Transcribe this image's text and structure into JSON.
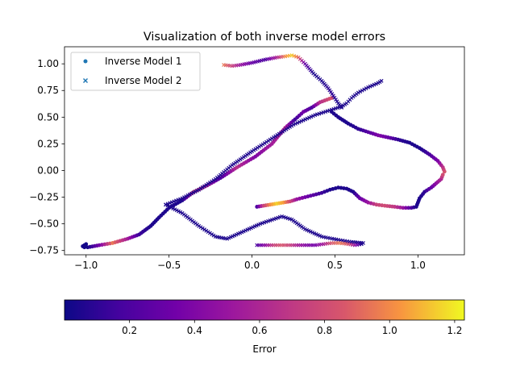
{
  "chart_data": {
    "type": "scatter",
    "title": "Visualization of both inverse model errors",
    "xlabel": "",
    "ylabel": "",
    "xlim": [
      -1.13,
      1.28
    ],
    "ylim": [
      -0.79,
      1.16
    ],
    "xticks": [
      -1.0,
      -0.5,
      0.0,
      0.5,
      1.0
    ],
    "yticks": [
      -0.75,
      -0.5,
      -0.25,
      0.0,
      0.25,
      0.5,
      0.75,
      1.0
    ],
    "xtick_labels": [
      "−1.0",
      "−0.5",
      "0.0",
      "0.5",
      "1.0"
    ],
    "ytick_labels": [
      "−0.75",
      "−0.50",
      "−0.25",
      "0.00",
      "0.25",
      "0.50",
      "0.75",
      "1.00"
    ],
    "grid": false,
    "legend": {
      "position": "top-left",
      "entries": [
        "Inverse Model 1",
        "Inverse Model 2"
      ]
    },
    "colorbar": {
      "label": "Error",
      "colormap": "plasma",
      "range": [
        0.0,
        1.23
      ],
      "ticks": [
        0.2,
        0.4,
        0.6,
        0.8,
        1.0,
        1.2
      ],
      "tick_labels": [
        "0.2",
        "0.4",
        "0.6",
        "0.8",
        "1.0",
        "1.2"
      ]
    },
    "series": [
      {
        "name": "Inverse Model 1",
        "marker": "circle",
        "paths": [
          {
            "points": [
              [
                -1.01,
                -0.72,
                0.02
              ],
              [
                -1.0,
                -0.69,
                0.02
              ],
              [
                -1.02,
                -0.71,
                0.02
              ],
              [
                -0.99,
                -0.72,
                0.02
              ],
              [
                -0.92,
                -0.7,
                0.35
              ],
              [
                -0.84,
                -0.68,
                0.95
              ],
              [
                -0.75,
                -0.64,
                0.55
              ],
              [
                -0.68,
                -0.6,
                0.15
              ],
              [
                -0.61,
                -0.52,
                0.05
              ],
              [
                -0.56,
                -0.44,
                0.05
              ],
              [
                -0.5,
                -0.35,
                0.05
              ],
              [
                -0.42,
                -0.28,
                0.05
              ],
              [
                -0.35,
                -0.2,
                0.8
              ],
              [
                -0.27,
                -0.14,
                0.6
              ],
              [
                -0.19,
                -0.07,
                0.2
              ],
              [
                -0.09,
                0.03,
                0.65
              ],
              [
                0.02,
                0.13,
                0.4
              ],
              [
                0.12,
                0.25,
                0.55
              ],
              [
                0.2,
                0.4,
                0.6
              ],
              [
                0.26,
                0.48,
                0.15
              ],
              [
                0.31,
                0.55,
                0.35
              ],
              [
                0.36,
                0.59,
                0.2
              ],
              [
                0.41,
                0.64,
                0.65
              ],
              [
                0.48,
                0.68,
                0.85
              ]
            ]
          },
          {
            "points": [
              [
                0.03,
                -0.34,
                0.2
              ],
              [
                0.07,
                -0.33,
                0.75
              ],
              [
                0.11,
                -0.32,
                1.0
              ],
              [
                0.15,
                -0.31,
                1.15
              ],
              [
                0.19,
                -0.3,
                1.05
              ],
              [
                0.23,
                -0.29,
                0.8
              ],
              [
                0.27,
                -0.27,
                0.5
              ],
              [
                0.32,
                -0.25,
                0.35
              ],
              [
                0.37,
                -0.23,
                0.25
              ],
              [
                0.42,
                -0.21,
                0.15
              ],
              [
                0.47,
                -0.18,
                0.05
              ],
              [
                0.52,
                -0.16,
                0.05
              ],
              [
                0.57,
                -0.17,
                0.05
              ],
              [
                0.61,
                -0.2,
                0.05
              ],
              [
                0.65,
                -0.26,
                0.3
              ],
              [
                0.7,
                -0.3,
                0.5
              ],
              [
                0.75,
                -0.32,
                0.75
              ],
              [
                0.8,
                -0.33,
                0.8
              ],
              [
                0.86,
                -0.34,
                0.7
              ],
              [
                0.91,
                -0.35,
                0.5
              ],
              [
                0.96,
                -0.35,
                0.2
              ],
              [
                0.99,
                -0.34,
                0.05
              ],
              [
                1.0,
                -0.3,
                0.05
              ],
              [
                1.01,
                -0.26,
                0.05
              ],
              [
                1.04,
                -0.2,
                0.1
              ],
              [
                1.08,
                -0.16,
                0.3
              ],
              [
                1.11,
                -0.12,
                0.45
              ],
              [
                1.14,
                -0.08,
                0.6
              ],
              [
                1.15,
                -0.04,
                0.8
              ],
              [
                1.16,
                -0.01,
                0.85
              ],
              [
                1.15,
                0.03,
                0.7
              ],
              [
                1.12,
                0.09,
                0.4
              ],
              [
                1.07,
                0.15,
                0.2
              ],
              [
                1.01,
                0.21,
                0.05
              ],
              [
                0.95,
                0.26,
                0.05
              ],
              [
                0.88,
                0.29,
                0.1
              ],
              [
                0.82,
                0.31,
                0.3
              ],
              [
                0.76,
                0.33,
                0.4
              ],
              [
                0.7,
                0.36,
                0.25
              ],
              [
                0.64,
                0.39,
                0.1
              ],
              [
                0.58,
                0.44,
                0.05
              ],
              [
                0.52,
                0.5,
                0.05
              ],
              [
                0.48,
                0.55,
                0.05
              ]
            ]
          }
        ]
      },
      {
        "name": "Inverse Model 2",
        "marker": "x",
        "paths": [
          {
            "points": [
              [
                -0.52,
                -0.32,
                0.05
              ],
              [
                -0.42,
                -0.4,
                0.05
              ],
              [
                -0.32,
                -0.52,
                0.05
              ],
              [
                -0.22,
                -0.62,
                0.05
              ],
              [
                -0.15,
                -0.64,
                0.05
              ],
              [
                -0.05,
                -0.57,
                0.05
              ],
              [
                0.05,
                -0.5,
                0.05
              ],
              [
                0.18,
                -0.43,
                0.05
              ],
              [
                0.24,
                -0.46,
                0.05
              ],
              [
                0.32,
                -0.55,
                0.05
              ],
              [
                0.42,
                -0.62,
                0.05
              ],
              [
                0.52,
                -0.65,
                0.05
              ],
              [
                0.6,
                -0.67,
                0.05
              ],
              [
                0.67,
                -0.68,
                0.05
              ]
            ]
          },
          {
            "points": [
              [
                -0.52,
                -0.32,
                0.05
              ],
              [
                -0.42,
                -0.26,
                0.05
              ],
              [
                -0.32,
                -0.18,
                0.05
              ],
              [
                -0.22,
                -0.08,
                0.05
              ],
              [
                -0.12,
                0.05,
                0.05
              ],
              [
                0.0,
                0.18,
                0.05
              ],
              [
                0.12,
                0.3,
                0.05
              ],
              [
                0.25,
                0.43,
                0.05
              ],
              [
                0.38,
                0.52,
                0.05
              ],
              [
                0.48,
                0.57,
                0.05
              ],
              [
                0.54,
                0.6,
                0.05
              ],
              [
                0.57,
                0.63,
                0.05
              ],
              [
                0.6,
                0.68,
                0.05
              ],
              [
                0.64,
                0.73,
                0.05
              ],
              [
                0.7,
                0.78,
                0.05
              ],
              [
                0.76,
                0.82,
                0.05
              ],
              [
                0.78,
                0.84,
                0.05
              ]
            ]
          },
          {
            "points": [
              [
                -0.17,
                0.99,
                0.95
              ],
              [
                -0.12,
                0.98,
                0.75
              ],
              [
                -0.07,
                0.99,
                0.5
              ],
              [
                0.0,
                1.01,
                0.3
              ],
              [
                0.08,
                1.04,
                0.2
              ],
              [
                0.15,
                1.06,
                0.6
              ],
              [
                0.2,
                1.07,
                1.0
              ],
              [
                0.24,
                1.08,
                1.15
              ],
              [
                0.28,
                1.06,
                0.9
              ],
              [
                0.32,
                1.0,
                0.3
              ],
              [
                0.37,
                0.91,
                0.05
              ],
              [
                0.42,
                0.84,
                0.05
              ],
              [
                0.46,
                0.77,
                0.1
              ],
              [
                0.49,
                0.7,
                0.1
              ],
              [
                0.52,
                0.63,
                0.05
              ],
              [
                0.54,
                0.59,
                0.05
              ]
            ]
          },
          {
            "points": [
              [
                0.03,
                -0.7,
                0.2
              ],
              [
                0.08,
                -0.7,
                0.45
              ],
              [
                0.13,
                -0.7,
                0.75
              ],
              [
                0.18,
                -0.7,
                0.85
              ],
              [
                0.23,
                -0.7,
                0.75
              ],
              [
                0.28,
                -0.7,
                0.55
              ],
              [
                0.33,
                -0.7,
                0.4
              ],
              [
                0.38,
                -0.7,
                0.35
              ],
              [
                0.43,
                -0.69,
                0.55
              ],
              [
                0.48,
                -0.68,
                0.85
              ],
              [
                0.53,
                -0.68,
                0.95
              ],
              [
                0.58,
                -0.69,
                0.85
              ],
              [
                0.62,
                -0.7,
                0.5
              ],
              [
                0.66,
                -0.69,
                0.05
              ]
            ]
          }
        ]
      }
    ]
  }
}
